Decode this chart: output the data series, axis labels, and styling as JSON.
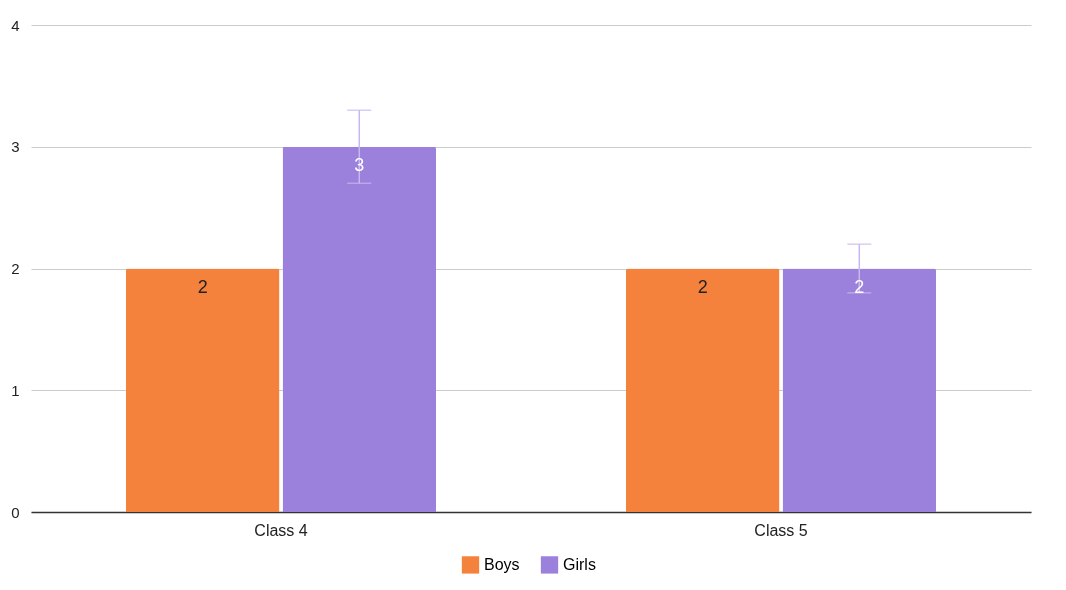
{
  "chart_data": {
    "type": "bar",
    "categories": [
      "Class 4",
      "Class 5"
    ],
    "series": [
      {
        "name": "Boys",
        "color": "#f4813c",
        "values": [
          2,
          2
        ]
      },
      {
        "name": "Girls",
        "color": "#9b80dc",
        "values": [
          3,
          2
        ],
        "errors": [
          0.3,
          0.2
        ]
      }
    ],
    "ylim": [
      0,
      4
    ],
    "yticks": [
      0,
      1,
      2,
      3,
      4
    ],
    "grid": "y",
    "legend": "bottom",
    "data_labels": true
  }
}
